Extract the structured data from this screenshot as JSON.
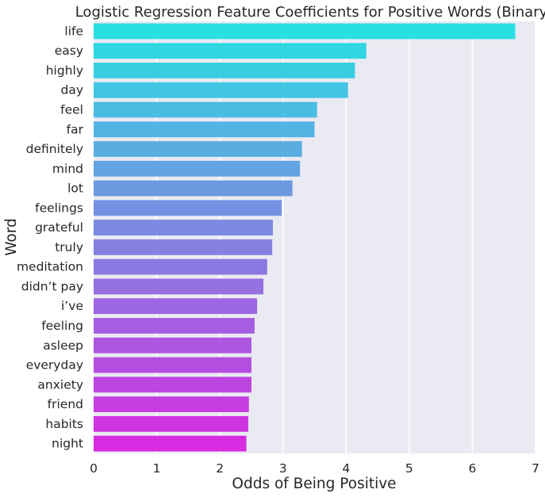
{
  "chart_data": {
    "type": "bar",
    "orientation": "horizontal",
    "title": "Logistic Regression Feature Coefficients for Positive Words (Binary)",
    "xlabel": "Odds of Being Positive",
    "ylabel": "Word",
    "xlim": [
      0,
      7
    ],
    "xticks": [
      "0",
      "1",
      "2",
      "3",
      "4",
      "5",
      "6",
      "7"
    ],
    "grid": true,
    "background_color": "#eaeaf2",
    "gradient_colors": [
      "#29dfe2",
      "#d62be0"
    ],
    "categories": [
      "life",
      "easy",
      "highly",
      "day",
      "feel",
      "far",
      "definitely",
      "mind",
      "lot",
      "feelings",
      "grateful",
      "truly",
      "meditation",
      "didn’t pay",
      "i’ve",
      "feeling",
      "asleep",
      "everyday",
      "anxiety",
      "friend",
      "habits",
      "night"
    ],
    "values": [
      6.68,
      4.32,
      4.14,
      4.03,
      3.54,
      3.5,
      3.3,
      3.27,
      3.15,
      2.98,
      2.84,
      2.83,
      2.75,
      2.69,
      2.59,
      2.55,
      2.5,
      2.5,
      2.5,
      2.46,
      2.45,
      2.42
    ]
  }
}
